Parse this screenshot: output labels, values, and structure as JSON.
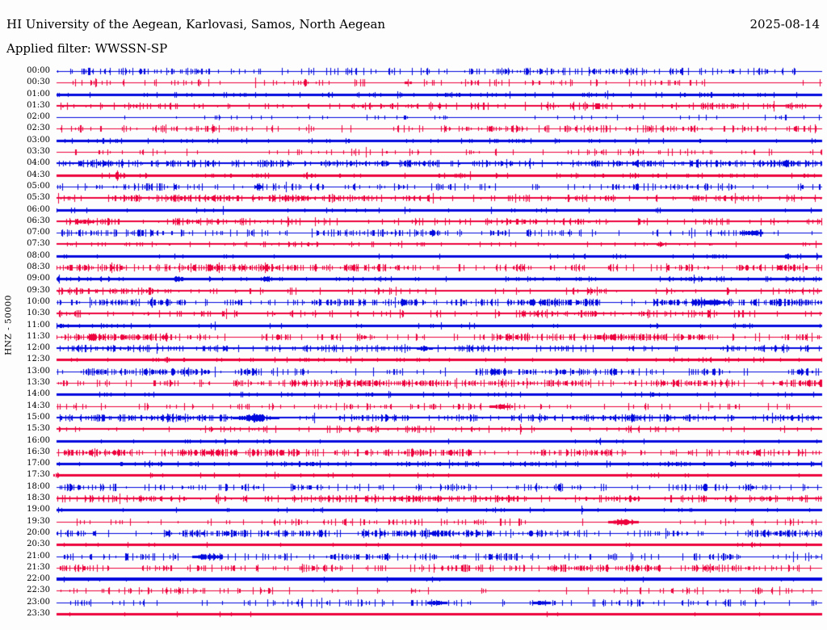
{
  "header": {
    "station_title": "HI University of the Aegean, Karlovasi, Samos, North Aegean",
    "date": "2025-08-14",
    "filter_label": "Applied filter: WWSSN-SP"
  },
  "axis": {
    "channel_label": "HNZ - 50000"
  },
  "colors": {
    "trace_blue": "#0008dd",
    "trace_red": "#ed003c",
    "text": "#000000",
    "background": "#fdfdfd"
  },
  "chart_data": {
    "type": "line",
    "subtype": "helicorder-seismogram",
    "title": "HI University of the Aegean, Karlovasi, Samos, North Aegean",
    "channel": "HNZ",
    "gain_scale": "50000",
    "filter": "WWSSN-SP",
    "date": "2025-08-14",
    "row_duration_minutes": 30,
    "rows_count": 48,
    "first_row_label": "00:00",
    "last_row_label": "23:30",
    "color_cycle": [
      "blue",
      "red"
    ],
    "rows": [
      {
        "label": "00:00",
        "color": "blue",
        "thickness": 1,
        "activity": 0.5,
        "noise_amp": 1.5,
        "events": []
      },
      {
        "label": "00:30",
        "color": "red",
        "thickness": 1,
        "activity": 0.25,
        "noise_amp": 1.5,
        "events": [
          {
            "x": 0.459,
            "w": 0.004,
            "amp": 3
          }
        ]
      },
      {
        "label": "01:00",
        "color": "blue",
        "thickness": 3,
        "activity": 0.3,
        "noise_amp": 1,
        "events": []
      },
      {
        "label": "01:30",
        "color": "red",
        "thickness": 2,
        "activity": 0.4,
        "noise_amp": 1.5,
        "events": []
      },
      {
        "label": "02:00",
        "color": "blue",
        "thickness": 1,
        "activity": 0.12,
        "noise_amp": 1,
        "events": []
      },
      {
        "label": "02:30",
        "color": "red",
        "thickness": 1,
        "activity": 0.45,
        "noise_amp": 1.5,
        "events": []
      },
      {
        "label": "03:00",
        "color": "blue",
        "thickness": 3,
        "activity": 0.2,
        "noise_amp": 1,
        "events": []
      },
      {
        "label": "03:30",
        "color": "red",
        "thickness": 1,
        "activity": 0.3,
        "noise_amp": 1.5,
        "events": []
      },
      {
        "label": "04:00",
        "color": "blue",
        "thickness": 2,
        "activity": 0.6,
        "noise_amp": 1.5,
        "events": []
      },
      {
        "label": "04:30",
        "color": "red",
        "thickness": 3,
        "activity": 0.3,
        "noise_amp": 1,
        "events": [
          {
            "x": 0.079,
            "w": 0.004,
            "amp": 5
          }
        ]
      },
      {
        "label": "05:00",
        "color": "blue",
        "thickness": 1,
        "activity": 0.4,
        "noise_amp": 1.5,
        "events": [
          {
            "x": 0.264,
            "w": 0.005,
            "amp": 4
          }
        ]
      },
      {
        "label": "05:30",
        "color": "red",
        "thickness": 2,
        "activity": 0.7,
        "noise_amp": 1.5,
        "events": []
      },
      {
        "label": "06:00",
        "color": "blue",
        "thickness": 3,
        "activity": 0.08,
        "noise_amp": 1,
        "events": []
      },
      {
        "label": "06:30",
        "color": "red",
        "thickness": 2,
        "activity": 0.45,
        "noise_amp": 1.5,
        "events": [
          {
            "x": 0.037,
            "w": 0.012,
            "amp": 3
          }
        ]
      },
      {
        "label": "07:00",
        "color": "blue",
        "thickness": 1,
        "activity": 0.55,
        "noise_amp": 1.5,
        "events": [
          {
            "x": 0.907,
            "w": 0.015,
            "amp": 2.5
          }
        ]
      },
      {
        "label": "07:30",
        "color": "red",
        "thickness": 2,
        "activity": 0.2,
        "noise_amp": 1,
        "events": [
          {
            "x": 0.788,
            "w": 0.004,
            "amp": 3
          }
        ]
      },
      {
        "label": "08:00",
        "color": "blue",
        "thickness": 3,
        "activity": 0.15,
        "noise_amp": 1,
        "events": [
          {
            "x": 0.955,
            "w": 0.008,
            "amp": 2.5
          }
        ]
      },
      {
        "label": "08:30",
        "color": "red",
        "thickness": 1,
        "activity": 0.8,
        "noise_amp": 1.5,
        "events": []
      },
      {
        "label": "09:00",
        "color": "blue",
        "thickness": 3,
        "activity": 0.3,
        "noise_amp": 1,
        "events": [
          {
            "x": 0.158,
            "w": 0.012,
            "amp": 3
          },
          {
            "x": 0.274,
            "w": 0.012,
            "amp": 3
          }
        ]
      },
      {
        "label": "09:30",
        "color": "red",
        "thickness": 2,
        "activity": 0.4,
        "noise_amp": 1.5,
        "events": []
      },
      {
        "label": "10:00",
        "color": "blue",
        "thickness": 1,
        "activity": 0.85,
        "noise_amp": 1.5,
        "events": [
          {
            "x": 0.854,
            "w": 0.02,
            "amp": 2.5
          }
        ]
      },
      {
        "label": "10:30",
        "color": "red",
        "thickness": 2,
        "activity": 0.5,
        "noise_amp": 1.5,
        "events": []
      },
      {
        "label": "11:00",
        "color": "blue",
        "thickness": 3,
        "activity": 0.15,
        "noise_amp": 1,
        "events": [
          {
            "x": 0.006,
            "w": 0.004,
            "amp": 3
          }
        ]
      },
      {
        "label": "11:30",
        "color": "red",
        "thickness": 1,
        "activity": 0.85,
        "noise_amp": 1.5,
        "events": []
      },
      {
        "label": "12:00",
        "color": "blue",
        "thickness": 2,
        "activity": 0.5,
        "noise_amp": 1.5,
        "events": [
          {
            "x": 0.48,
            "w": 0.01,
            "amp": 2.5
          }
        ]
      },
      {
        "label": "12:30",
        "color": "red",
        "thickness": 3,
        "activity": 0.2,
        "noise_amp": 1,
        "events": []
      },
      {
        "label": "13:00",
        "color": "blue",
        "thickness": 1,
        "activity": 0.7,
        "noise_amp": 1.5,
        "events": []
      },
      {
        "label": "13:30",
        "color": "red",
        "thickness": 1,
        "activity": 0.75,
        "noise_amp": 1.5,
        "events": []
      },
      {
        "label": "14:00",
        "color": "blue",
        "thickness": 3,
        "activity": 0.15,
        "noise_amp": 1,
        "events": []
      },
      {
        "label": "14:30",
        "color": "red",
        "thickness": 1,
        "activity": 0.35,
        "noise_amp": 1.5,
        "events": [
          {
            "x": 0.58,
            "w": 0.015,
            "amp": 2.5
          }
        ]
      },
      {
        "label": "15:00",
        "color": "blue",
        "thickness": 2,
        "activity": 0.6,
        "noise_amp": 1.5,
        "events": [
          {
            "x": 0.26,
            "w": 0.03,
            "amp": 4.5
          }
        ]
      },
      {
        "label": "15:30",
        "color": "red",
        "thickness": 2,
        "activity": 0.35,
        "noise_amp": 1.5,
        "events": []
      },
      {
        "label": "16:00",
        "color": "blue",
        "thickness": 3,
        "activity": 0.1,
        "noise_amp": 1,
        "events": []
      },
      {
        "label": "16:30",
        "color": "red",
        "thickness": 1,
        "activity": 0.85,
        "noise_amp": 1.5,
        "events": []
      },
      {
        "label": "17:00",
        "color": "blue",
        "thickness": 3,
        "activity": 0.4,
        "noise_amp": 1,
        "events": []
      },
      {
        "label": "17:30",
        "color": "red",
        "thickness": 3,
        "activity": 0.1,
        "noise_amp": 1,
        "events": [
          {
            "x": 0.0,
            "w": 0.004,
            "amp": 3
          }
        ]
      },
      {
        "label": "18:00",
        "color": "blue",
        "thickness": 1,
        "activity": 0.4,
        "noise_amp": 1.5,
        "events": []
      },
      {
        "label": "18:30",
        "color": "red",
        "thickness": 2,
        "activity": 0.55,
        "noise_amp": 1.5,
        "events": []
      },
      {
        "label": "19:00",
        "color": "blue",
        "thickness": 3,
        "activity": 0.15,
        "noise_amp": 1,
        "events": []
      },
      {
        "label": "19:30",
        "color": "red",
        "thickness": 1,
        "activity": 0.3,
        "noise_amp": 1.5,
        "events": [
          {
            "x": 0.74,
            "w": 0.02,
            "amp": 3
          }
        ]
      },
      {
        "label": "20:00",
        "color": "blue",
        "thickness": 1,
        "activity": 0.85,
        "noise_amp": 1.5,
        "events": []
      },
      {
        "label": "20:30",
        "color": "red",
        "thickness": 3,
        "activity": 0.1,
        "noise_amp": 1,
        "events": []
      },
      {
        "label": "21:00",
        "color": "blue",
        "thickness": 1,
        "activity": 0.6,
        "noise_amp": 1.5,
        "events": [
          {
            "x": 0.195,
            "w": 0.018,
            "amp": 3
          }
        ]
      },
      {
        "label": "21:30",
        "color": "red",
        "thickness": 1,
        "activity": 0.55,
        "noise_amp": 1.5,
        "events": []
      },
      {
        "label": "22:00",
        "color": "blue",
        "thickness": 4,
        "activity": 0.05,
        "noise_amp": 1,
        "events": []
      },
      {
        "label": "22:30",
        "color": "red",
        "thickness": 1,
        "activity": 0.3,
        "noise_amp": 1.5,
        "events": []
      },
      {
        "label": "23:00",
        "color": "blue",
        "thickness": 1,
        "activity": 0.4,
        "noise_amp": 1.5,
        "events": [
          {
            "x": 0.496,
            "w": 0.012,
            "amp": 2.5
          },
          {
            "x": 0.633,
            "w": 0.012,
            "amp": 2.5
          }
        ]
      },
      {
        "label": "23:30",
        "color": "red",
        "thickness": 3,
        "activity": 0.05,
        "noise_amp": 1,
        "events": []
      }
    ]
  }
}
